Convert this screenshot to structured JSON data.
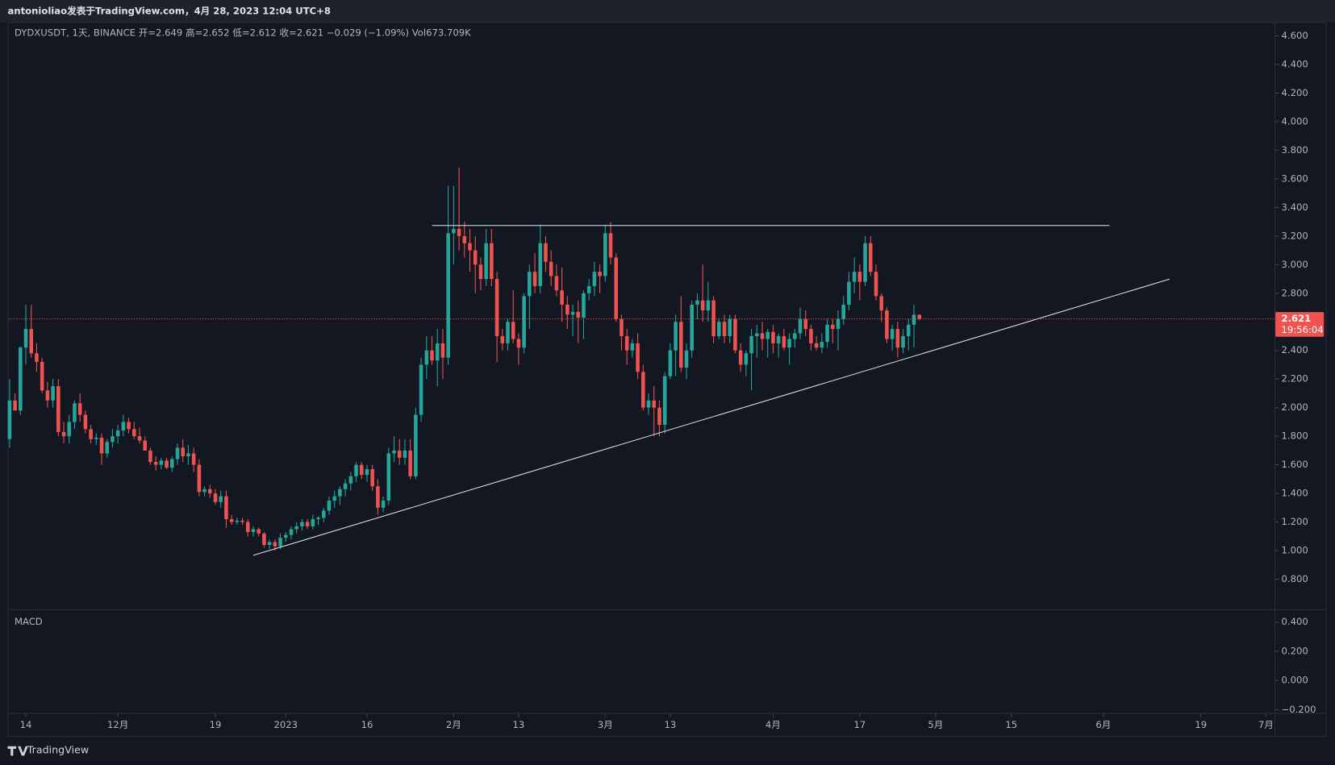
{
  "chart_data": {
    "type": "candlestick",
    "header": "antonioliao发表于TradingView.com，4月 28, 2023 12:04 UTC+8",
    "legend": "DYDXUSDT, 1天, BINANCE  开=2.649  高=2.652  低=2.612  收=2.621  −0.029 (−1.09%)  Vol673.709K",
    "indicator": "MACD",
    "brand": "TradingView",
    "up_color": "#26a69a",
    "down_color": "#ef5350",
    "ohlc": [
      [
        1.78,
        2.2,
        1.72,
        2.05
      ],
      [
        2.05,
        2.1,
        1.98,
        1.98
      ],
      [
        1.98,
        2.43,
        1.95,
        2.42
      ],
      [
        2.42,
        2.72,
        2.3,
        2.55
      ],
      [
        2.55,
        2.72,
        2.35,
        2.38
      ],
      [
        2.38,
        2.45,
        2.25,
        2.32
      ],
      [
        2.32,
        2.35,
        2.1,
        2.12
      ],
      [
        2.12,
        2.18,
        2.0,
        2.05
      ],
      [
        2.05,
        2.2,
        2.0,
        2.15
      ],
      [
        2.15,
        2.2,
        1.8,
        1.83
      ],
      [
        1.83,
        1.9,
        1.75,
        1.8
      ],
      [
        1.8,
        1.95,
        1.75,
        1.9
      ],
      [
        1.9,
        2.05,
        1.85,
        2.03
      ],
      [
        2.03,
        2.1,
        1.9,
        1.95
      ],
      [
        1.95,
        1.98,
        1.82,
        1.85
      ],
      [
        1.85,
        1.88,
        1.75,
        1.78
      ],
      [
        1.78,
        1.82,
        1.74,
        1.79
      ],
      [
        1.79,
        1.82,
        1.6,
        1.68
      ],
      [
        1.68,
        1.78,
        1.65,
        1.76
      ],
      [
        1.76,
        1.85,
        1.72,
        1.8
      ],
      [
        1.8,
        1.88,
        1.75,
        1.84
      ],
      [
        1.84,
        1.95,
        1.8,
        1.9
      ],
      [
        1.9,
        1.93,
        1.82,
        1.85
      ],
      [
        1.85,
        1.9,
        1.78,
        1.8
      ],
      [
        1.8,
        1.86,
        1.75,
        1.77
      ],
      [
        1.77,
        1.8,
        1.7,
        1.7
      ],
      [
        1.7,
        1.72,
        1.6,
        1.62
      ],
      [
        1.62,
        1.66,
        1.56,
        1.6
      ],
      [
        1.6,
        1.65,
        1.57,
        1.63
      ],
      [
        1.63,
        1.65,
        1.57,
        1.58
      ],
      [
        1.58,
        1.66,
        1.55,
        1.64
      ],
      [
        1.64,
        1.75,
        1.6,
        1.72
      ],
      [
        1.72,
        1.78,
        1.62,
        1.66
      ],
      [
        1.66,
        1.74,
        1.6,
        1.68
      ],
      [
        1.68,
        1.72,
        1.55,
        1.6
      ],
      [
        1.6,
        1.64,
        1.38,
        1.41
      ],
      [
        1.41,
        1.45,
        1.38,
        1.43
      ],
      [
        1.43,
        1.46,
        1.37,
        1.4
      ],
      [
        1.4,
        1.43,
        1.32,
        1.34
      ],
      [
        1.34,
        1.42,
        1.3,
        1.38
      ],
      [
        1.38,
        1.42,
        1.16,
        1.22
      ],
      [
        1.22,
        1.25,
        1.18,
        1.2
      ],
      [
        1.2,
        1.23,
        1.18,
        1.21
      ],
      [
        1.21,
        1.23,
        1.18,
        1.2
      ],
      [
        1.2,
        1.22,
        1.1,
        1.13
      ],
      [
        1.13,
        1.17,
        1.1,
        1.15
      ],
      [
        1.15,
        1.16,
        1.1,
        1.12
      ],
      [
        1.12,
        1.13,
        1.02,
        1.04
      ],
      [
        1.04,
        1.08,
        1.01,
        1.06
      ],
      [
        1.06,
        1.08,
        1.0,
        1.03
      ],
      [
        1.03,
        1.12,
        1.01,
        1.09
      ],
      [
        1.09,
        1.13,
        1.06,
        1.11
      ],
      [
        1.11,
        1.17,
        1.08,
        1.15
      ],
      [
        1.15,
        1.2,
        1.12,
        1.17
      ],
      [
        1.17,
        1.22,
        1.14,
        1.2
      ],
      [
        1.2,
        1.22,
        1.15,
        1.17
      ],
      [
        1.17,
        1.25,
        1.15,
        1.22
      ],
      [
        1.22,
        1.24,
        1.18,
        1.23
      ],
      [
        1.23,
        1.3,
        1.2,
        1.28
      ],
      [
        1.28,
        1.38,
        1.25,
        1.35
      ],
      [
        1.35,
        1.42,
        1.3,
        1.38
      ],
      [
        1.38,
        1.45,
        1.32,
        1.43
      ],
      [
        1.43,
        1.5,
        1.38,
        1.47
      ],
      [
        1.47,
        1.55,
        1.42,
        1.52
      ],
      [
        1.52,
        1.62,
        1.48,
        1.6
      ],
      [
        1.6,
        1.62,
        1.5,
        1.53
      ],
      [
        1.53,
        1.6,
        1.48,
        1.57
      ],
      [
        1.57,
        1.6,
        1.42,
        1.45
      ],
      [
        1.45,
        1.5,
        1.25,
        1.3
      ],
      [
        1.3,
        1.38,
        1.27,
        1.35
      ],
      [
        1.35,
        1.72,
        1.32,
        1.68
      ],
      [
        1.68,
        1.8,
        1.62,
        1.7
      ],
      [
        1.7,
        1.78,
        1.6,
        1.65
      ],
      [
        1.65,
        1.78,
        1.6,
        1.7
      ],
      [
        1.7,
        1.78,
        1.5,
        1.52
      ],
      [
        1.52,
        2.0,
        1.5,
        1.95
      ],
      [
        1.95,
        2.35,
        1.9,
        2.3
      ],
      [
        2.3,
        2.5,
        2.2,
        2.4
      ],
      [
        2.4,
        2.5,
        2.3,
        2.33
      ],
      [
        2.33,
        2.55,
        2.15,
        2.45
      ],
      [
        2.45,
        2.55,
        2.2,
        2.35
      ],
      [
        2.35,
        3.55,
        2.3,
        3.22
      ],
      [
        3.22,
        3.55,
        3.0,
        3.25
      ],
      [
        3.25,
        3.68,
        3.1,
        3.2
      ],
      [
        3.2,
        3.3,
        3.05,
        3.15
      ],
      [
        3.15,
        3.25,
        2.95,
        3.1
      ],
      [
        3.1,
        3.2,
        2.8,
        3.0
      ],
      [
        3.0,
        3.05,
        2.82,
        2.9
      ],
      [
        2.9,
        3.25,
        2.85,
        3.15
      ],
      [
        3.15,
        3.25,
        2.85,
        2.9
      ],
      [
        2.9,
        2.95,
        2.32,
        2.5
      ],
      [
        2.5,
        2.55,
        2.4,
        2.45
      ],
      [
        2.45,
        2.62,
        2.4,
        2.6
      ],
      [
        2.6,
        2.82,
        2.45,
        2.48
      ],
      [
        2.48,
        2.52,
        2.3,
        2.42
      ],
      [
        2.42,
        2.8,
        2.38,
        2.78
      ],
      [
        2.78,
        3.0,
        2.55,
        2.95
      ],
      [
        2.95,
        3.08,
        2.8,
        2.85
      ],
      [
        2.85,
        3.28,
        2.8,
        3.15
      ],
      [
        3.15,
        3.2,
        2.95,
        3.02
      ],
      [
        3.02,
        3.1,
        2.85,
        2.92
      ],
      [
        2.92,
        3.0,
        2.78,
        2.82
      ],
      [
        2.82,
        2.98,
        2.6,
        2.72
      ],
      [
        2.72,
        2.78,
        2.55,
        2.65
      ],
      [
        2.65,
        2.72,
        2.5,
        2.67
      ],
      [
        2.67,
        2.75,
        2.45,
        2.63
      ],
      [
        2.63,
        2.82,
        2.48,
        2.8
      ],
      [
        2.8,
        2.9,
        2.75,
        2.85
      ],
      [
        2.85,
        3.02,
        2.78,
        2.95
      ],
      [
        2.95,
        3.0,
        2.8,
        2.92
      ],
      [
        2.92,
        3.28,
        2.88,
        3.22
      ],
      [
        3.22,
        3.3,
        3.0,
        3.05
      ],
      [
        3.05,
        3.08,
        2.6,
        2.62
      ],
      [
        2.62,
        2.65,
        2.4,
        2.5
      ],
      [
        2.5,
        2.55,
        2.3,
        2.4
      ],
      [
        2.4,
        2.48,
        2.35,
        2.45
      ],
      [
        2.45,
        2.52,
        2.2,
        2.25
      ],
      [
        2.25,
        2.3,
        1.98,
        2.0
      ],
      [
        2.0,
        2.1,
        1.95,
        2.05
      ],
      [
        2.05,
        2.15,
        1.8,
        2.0
      ],
      [
        2.0,
        2.05,
        1.8,
        1.88
      ],
      [
        1.88,
        2.25,
        1.82,
        2.22
      ],
      [
        2.22,
        2.45,
        2.2,
        2.4
      ],
      [
        2.4,
        2.65,
        2.22,
        2.6
      ],
      [
        2.6,
        2.78,
        2.25,
        2.28
      ],
      [
        2.28,
        2.45,
        2.2,
        2.4
      ],
      [
        2.4,
        2.75,
        2.35,
        2.72
      ],
      [
        2.72,
        2.8,
        2.62,
        2.75
      ],
      [
        2.75,
        3.0,
        2.6,
        2.68
      ],
      [
        2.68,
        2.88,
        2.6,
        2.75
      ],
      [
        2.75,
        2.78,
        2.45,
        2.5
      ],
      [
        2.5,
        2.62,
        2.48,
        2.6
      ],
      [
        2.6,
        2.65,
        2.45,
        2.5
      ],
      [
        2.5,
        2.65,
        2.45,
        2.62
      ],
      [
        2.62,
        2.65,
        2.38,
        2.4
      ],
      [
        2.4,
        2.45,
        2.25,
        2.3
      ],
      [
        2.3,
        2.4,
        2.22,
        2.38
      ],
      [
        2.38,
        2.55,
        2.12,
        2.5
      ],
      [
        2.5,
        2.58,
        2.35,
        2.52
      ],
      [
        2.52,
        2.6,
        2.4,
        2.48
      ],
      [
        2.48,
        2.55,
        2.35,
        2.53
      ],
      [
        2.53,
        2.58,
        2.38,
        2.45
      ],
      [
        2.45,
        2.52,
        2.35,
        2.5
      ],
      [
        2.5,
        2.55,
        2.4,
        2.42
      ],
      [
        2.42,
        2.52,
        2.3,
        2.48
      ],
      [
        2.48,
        2.55,
        2.42,
        2.52
      ],
      [
        2.52,
        2.7,
        2.48,
        2.62
      ],
      [
        2.62,
        2.68,
        2.5,
        2.55
      ],
      [
        2.55,
        2.58,
        2.4,
        2.45
      ],
      [
        2.45,
        2.5,
        2.4,
        2.42
      ],
      [
        2.42,
        2.52,
        2.38,
        2.46
      ],
      [
        2.46,
        2.62,
        2.42,
        2.58
      ],
      [
        2.58,
        2.62,
        2.45,
        2.55
      ],
      [
        2.55,
        2.68,
        2.4,
        2.62
      ],
      [
        2.62,
        2.78,
        2.58,
        2.72
      ],
      [
        2.72,
        2.95,
        2.68,
        2.88
      ],
      [
        2.88,
        3.05,
        2.8,
        2.95
      ],
      [
        2.95,
        3.0,
        2.75,
        2.88
      ],
      [
        2.88,
        3.2,
        2.85,
        3.15
      ],
      [
        3.15,
        3.2,
        2.92,
        2.95
      ],
      [
        2.95,
        3.0,
        2.75,
        2.78
      ],
      [
        2.78,
        2.8,
        2.6,
        2.68
      ],
      [
        2.68,
        2.7,
        2.45,
        2.48
      ],
      [
        2.48,
        2.58,
        2.4,
        2.55
      ],
      [
        2.55,
        2.6,
        2.35,
        2.42
      ],
      [
        2.42,
        2.55,
        2.38,
        2.5
      ],
      [
        2.5,
        2.62,
        2.4,
        2.58
      ],
      [
        2.58,
        2.72,
        2.42,
        2.65
      ],
      [
        2.649,
        2.652,
        2.612,
        2.621
      ]
    ],
    "xlim": [
      -0.2,
      233.6
    ],
    "xticks": [
      {
        "value": 3,
        "label": "14"
      },
      {
        "value": 20,
        "label": "12月"
      },
      {
        "value": 38,
        "label": "19"
      },
      {
        "value": 51,
        "label": "2023"
      },
      {
        "value": 66,
        "label": "16"
      },
      {
        "value": 82,
        "label": "2月"
      },
      {
        "value": 94,
        "label": "13"
      },
      {
        "value": 110,
        "label": "3月"
      },
      {
        "value": 122,
        "label": "13"
      },
      {
        "value": 141,
        "label": "4月"
      },
      {
        "value": 157,
        "label": "17"
      },
      {
        "value": 171,
        "label": "5月"
      },
      {
        "value": 185,
        "label": "15"
      },
      {
        "value": 202,
        "label": "6月"
      },
      {
        "value": 220,
        "label": "19"
      },
      {
        "value": 232,
        "label": "7月"
      }
    ],
    "ylim": [
      0.59,
      4.69
    ],
    "yticks": [
      {
        "value": 0.8,
        "label": "0.800"
      },
      {
        "value": 1,
        "label": "1.000"
      },
      {
        "value": 1.2,
        "label": "1.200"
      },
      {
        "value": 1.4,
        "label": "1.400"
      },
      {
        "value": 1.6,
        "label": "1.600"
      },
      {
        "value": 1.8,
        "label": "1.800"
      },
      {
        "value": 2,
        "label": "2.000"
      },
      {
        "value": 2.2,
        "label": "2.200"
      },
      {
        "value": 2.4,
        "label": "2.400"
      },
      {
        "value": 2.8,
        "label": "2.800"
      },
      {
        "value": 3,
        "label": "3.000"
      },
      {
        "value": 3.2,
        "label": "3.200"
      },
      {
        "value": 3.4,
        "label": "3.400"
      },
      {
        "value": 3.6,
        "label": "3.600"
      },
      {
        "value": 3.8,
        "label": "3.800"
      },
      {
        "value": 4,
        "label": "4.000"
      },
      {
        "value": 4.2,
        "label": "4.200"
      },
      {
        "value": 4.4,
        "label": "4.400"
      },
      {
        "value": 4.6,
        "label": "4.600"
      }
    ],
    "y2lim": [
      -0.223,
      0.482
    ],
    "y2ticks": [
      {
        "value": 0.4,
        "label": "0.400"
      },
      {
        "value": 0.2,
        "label": "0.200"
      },
      {
        "value": 0,
        "label": "0.000"
      },
      {
        "value": -0.2,
        "label": "−0.200"
      }
    ],
    "last_price": 2.621,
    "countdown": "19:56:04",
    "trend_lines": [
      {
        "x": [
          78.0,
          203.1
        ],
        "y": [
          3.274,
          3.274
        ]
      },
      {
        "x": [
          45.0,
          214.2
        ],
        "y": [
          0.967,
          2.899
        ]
      }
    ]
  }
}
